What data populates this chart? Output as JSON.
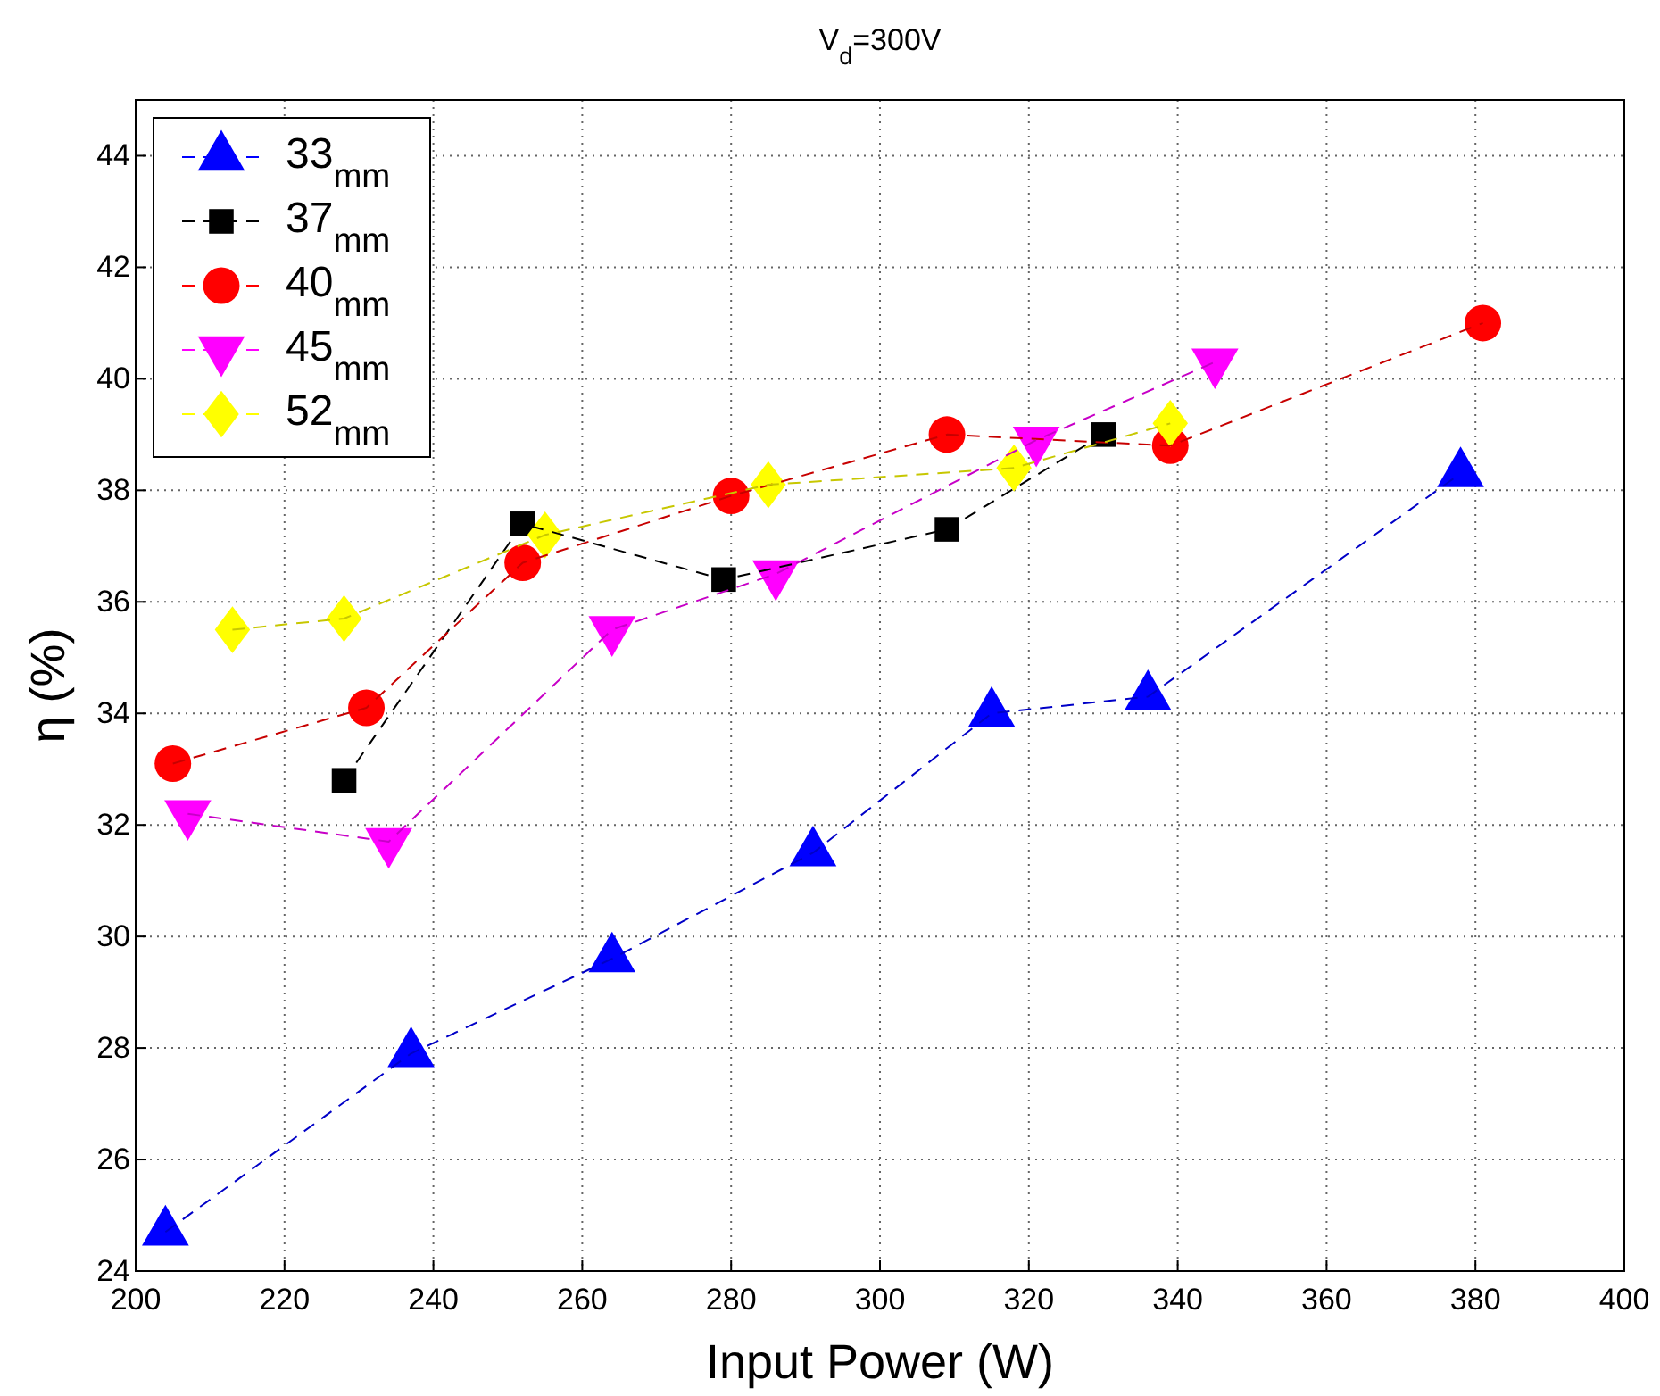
{
  "chart_data": {
    "type": "line",
    "title": "V$_{d}$=300V",
    "xlabel": "Input Power (W)",
    "ylabel": "η (%)",
    "xlim": [
      200,
      400
    ],
    "xticks": [
      200,
      220,
      240,
      260,
      280,
      300,
      320,
      340,
      360,
      380,
      400
    ],
    "ylim": [
      24,
      45
    ],
    "yticks": [
      24,
      26,
      28,
      30,
      32,
      34,
      36,
      38,
      40,
      42,
      44
    ],
    "grid": true,
    "legend": "top left",
    "line_style": "dashed",
    "series": [
      {
        "name": "33$_{mm}$",
        "color": "#0000ff",
        "marker": "triangle",
        "x": [
          204,
          237,
          264,
          291,
          315,
          336,
          378
        ],
        "values": [
          24.7,
          27.9,
          29.6,
          31.5,
          34.0,
          34.3,
          38.3
        ]
      },
      {
        "name": "37$_{mm}$",
        "color": "#000000",
        "marker": "square",
        "x": [
          228,
          252,
          279,
          309,
          330
        ],
        "values": [
          32.8,
          37.4,
          36.4,
          37.3,
          39.0
        ]
      },
      {
        "name": "40$_{mm}$",
        "color": "#ff0000",
        "marker": "circle",
        "x": [
          205,
          231,
          252,
          280,
          309,
          339,
          381
        ],
        "values": [
          33.1,
          34.1,
          36.7,
          37.9,
          39.0,
          38.8,
          41.0
        ]
      },
      {
        "name": "45$_{mm}$",
        "color": "#ff00ff",
        "marker": "triangle-down",
        "x": [
          207,
          234,
          264,
          286,
          321,
          345
        ],
        "values": [
          32.2,
          31.7,
          35.5,
          36.5,
          38.9,
          40.3
        ]
      },
      {
        "name": "52$_{mm}$",
        "color": "#ffff00",
        "marker": "diamond",
        "x": [
          213,
          228,
          255,
          285,
          318,
          339
        ],
        "values": [
          35.5,
          35.7,
          37.2,
          38.1,
          38.4,
          39.2
        ]
      }
    ]
  }
}
